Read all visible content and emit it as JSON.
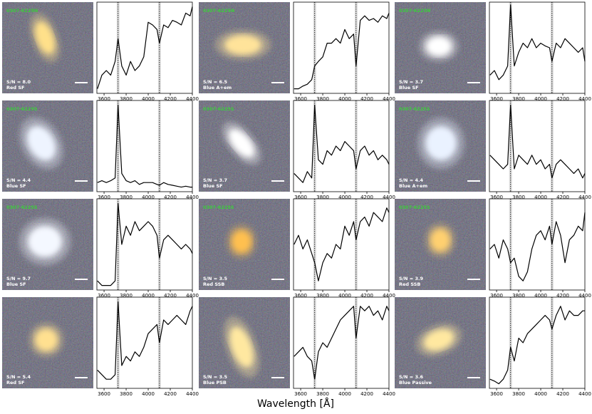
{
  "chart_data": {
    "type": "line",
    "xlabel": "Wavelength [Å]",
    "xlim": [
      3535,
      4400
    ],
    "xticks": [
      3600,
      3800,
      4000,
      4200,
      4400
    ],
    "ylim": [
      0,
      1
    ],
    "color": "#000000",
    "grid": false,
    "lines": [
      3727,
      4102
    ],
    "x": [
      3540,
      3580,
      3620,
      3660,
      3700,
      3727,
      3760,
      3800,
      3840,
      3880,
      3920,
      3960,
      4000,
      4040,
      4080,
      4102,
      4140,
      4180,
      4220,
      4260,
      4300,
      4340,
      4380,
      4400
    ],
    "panels": [
      {
        "field": "0307-6225N",
        "snr": "S/N = 8.0",
        "class": "Red SF",
        "values": [
          0.05,
          0.2,
          0.25,
          0.2,
          0.35,
          0.6,
          0.3,
          0.2,
          0.35,
          0.25,
          0.3,
          0.4,
          0.78,
          0.75,
          0.7,
          0.55,
          0.75,
          0.72,
          0.8,
          0.78,
          0.75,
          0.88,
          0.85,
          0.95
        ]
      },
      {
        "field": "0307-6225N",
        "snr": "S/N = 6.5",
        "class": "Blue A+em",
        "values": [
          0.05,
          0.05,
          0.08,
          0.1,
          0.15,
          0.3,
          0.35,
          0.4,
          0.55,
          0.55,
          0.6,
          0.55,
          0.7,
          0.6,
          0.65,
          0.3,
          0.8,
          0.85,
          0.8,
          0.82,
          0.78,
          0.85,
          0.82,
          0.88
        ]
      },
      {
        "field": "0307-6225N",
        "snr": "S/N = 3.7",
        "class": "Blue SF",
        "values": [
          0.2,
          0.25,
          0.15,
          0.2,
          0.3,
          0.97,
          0.3,
          0.45,
          0.55,
          0.5,
          0.6,
          0.5,
          0.55,
          0.52,
          0.5,
          0.35,
          0.55,
          0.5,
          0.6,
          0.55,
          0.5,
          0.45,
          0.5,
          0.35
        ]
      },
      {
        "field": "0307-6225S",
        "snr": "S/N = 4.4",
        "class": "Blue SF",
        "values": [
          0.1,
          0.12,
          0.1,
          0.12,
          0.15,
          0.95,
          0.2,
          0.12,
          0.1,
          0.12,
          0.08,
          0.1,
          0.1,
          0.1,
          0.08,
          0.07,
          0.1,
          0.08,
          0.07,
          0.06,
          0.05,
          0.06,
          0.05,
          0.05
        ]
      },
      {
        "field": "0307-6225S",
        "snr": "S/N = 3.7",
        "class": "Blue SF",
        "values": [
          0.2,
          0.15,
          0.1,
          0.22,
          0.15,
          0.95,
          0.35,
          0.3,
          0.45,
          0.4,
          0.5,
          0.45,
          0.55,
          0.5,
          0.45,
          0.25,
          0.45,
          0.5,
          0.4,
          0.45,
          0.35,
          0.4,
          0.35,
          0.3
        ]
      },
      {
        "field": "0307-6225S",
        "snr": "S/N = 4.4",
        "class": "Blue A+em",
        "values": [
          0.4,
          0.35,
          0.3,
          0.25,
          0.3,
          0.95,
          0.25,
          0.4,
          0.35,
          0.3,
          0.4,
          0.3,
          0.35,
          0.25,
          0.3,
          0.15,
          0.3,
          0.35,
          0.3,
          0.25,
          0.2,
          0.25,
          0.15,
          0.2
        ]
      },
      {
        "field": "0307-6225S",
        "snr": "S/N = 9.7",
        "class": "Blue SF",
        "values": [
          0.1,
          0.05,
          0.05,
          0.05,
          0.1,
          0.95,
          0.5,
          0.7,
          0.6,
          0.75,
          0.65,
          0.7,
          0.75,
          0.7,
          0.6,
          0.35,
          0.55,
          0.6,
          0.55,
          0.5,
          0.45,
          0.5,
          0.45,
          0.4
        ]
      },
      {
        "field": "0307-6225S",
        "snr": "S/N = 3.5",
        "class": "Red SSB",
        "values": [
          0.5,
          0.6,
          0.45,
          0.55,
          0.4,
          0.3,
          0.1,
          0.3,
          0.4,
          0.35,
          0.5,
          0.45,
          0.7,
          0.6,
          0.75,
          0.55,
          0.75,
          0.8,
          0.7,
          0.85,
          0.8,
          0.75,
          0.9,
          0.85
        ]
      },
      {
        "field": "0307-6225S",
        "snr": "S/N = 3.9",
        "class": "Red SSB",
        "values": [
          0.45,
          0.5,
          0.35,
          0.55,
          0.45,
          0.3,
          0.35,
          0.15,
          0.1,
          0.2,
          0.45,
          0.6,
          0.65,
          0.55,
          0.7,
          0.5,
          0.75,
          0.6,
          0.3,
          0.55,
          0.6,
          0.7,
          0.65,
          0.85
        ]
      },
      {
        "snr": "S/N = 5.4",
        "class": "Red SF",
        "values": [
          0.2,
          0.15,
          0.1,
          0.1,
          0.15,
          0.95,
          0.25,
          0.35,
          0.3,
          0.4,
          0.35,
          0.45,
          0.6,
          0.65,
          0.7,
          0.5,
          0.75,
          0.7,
          0.75,
          0.8,
          0.75,
          0.7,
          0.85,
          0.9
        ]
      },
      {
        "snr": "S/N = 3.5",
        "class": "Blue PSB",
        "values": [
          0.35,
          0.4,
          0.45,
          0.35,
          0.3,
          0.1,
          0.4,
          0.5,
          0.45,
          0.55,
          0.65,
          0.75,
          0.8,
          0.85,
          0.9,
          0.55,
          0.9,
          0.85,
          0.9,
          0.8,
          0.85,
          0.75,
          0.9,
          0.85
        ]
      },
      {
        "snr": "S/N = 3.6",
        "class": "Blue Passive",
        "values": [
          0.1,
          0.08,
          0.05,
          0.1,
          0.2,
          0.45,
          0.3,
          0.55,
          0.5,
          0.6,
          0.65,
          0.7,
          0.75,
          0.8,
          0.75,
          0.65,
          0.8,
          0.9,
          0.75,
          0.85,
          0.8,
          0.8,
          0.85,
          0.85
        ]
      }
    ]
  }
}
